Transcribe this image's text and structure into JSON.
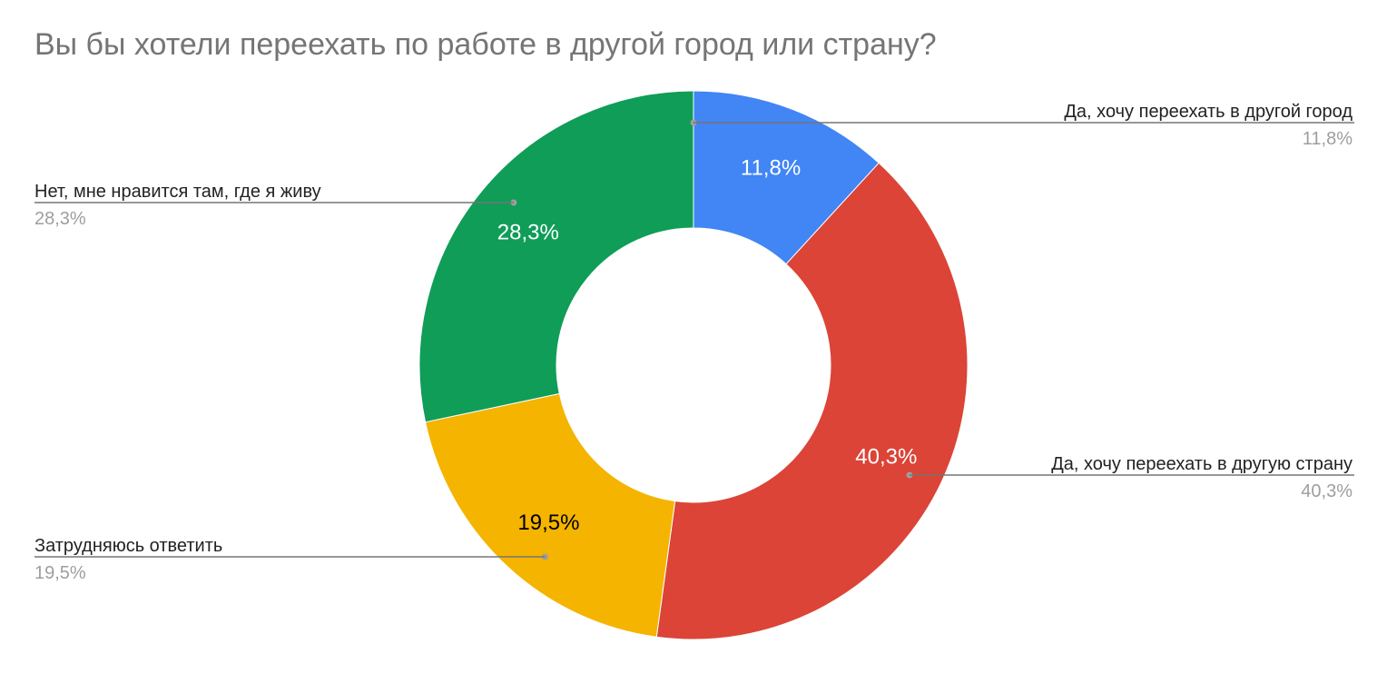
{
  "chart_data": {
    "type": "pie",
    "title": "Вы бы хотели переехать по работе в другой город или страну?",
    "donut": true,
    "slices": [
      {
        "label": "Да, хочу переехать в другой город",
        "value": 11.8,
        "value_label": "11,8%",
        "color": "#4285f4",
        "label_color": "#ffffff",
        "legend_side": "right"
      },
      {
        "label": "Да, хочу переехать в другую страну",
        "value": 40.3,
        "value_label": "40,3%",
        "color": "#db4437",
        "label_color": "#ffffff",
        "legend_side": "right"
      },
      {
        "label": "Затрудняюсь ответить",
        "value": 19.5,
        "value_label": "19,5%",
        "color": "#f4b400",
        "label_color": "#000000",
        "legend_side": "left"
      },
      {
        "label": "Нет, мне нравится там, где я живу",
        "value": 28.3,
        "value_label": "28,3%",
        "color": "#0f9d58",
        "label_color": "#ffffff",
        "legend_side": "left"
      }
    ]
  }
}
